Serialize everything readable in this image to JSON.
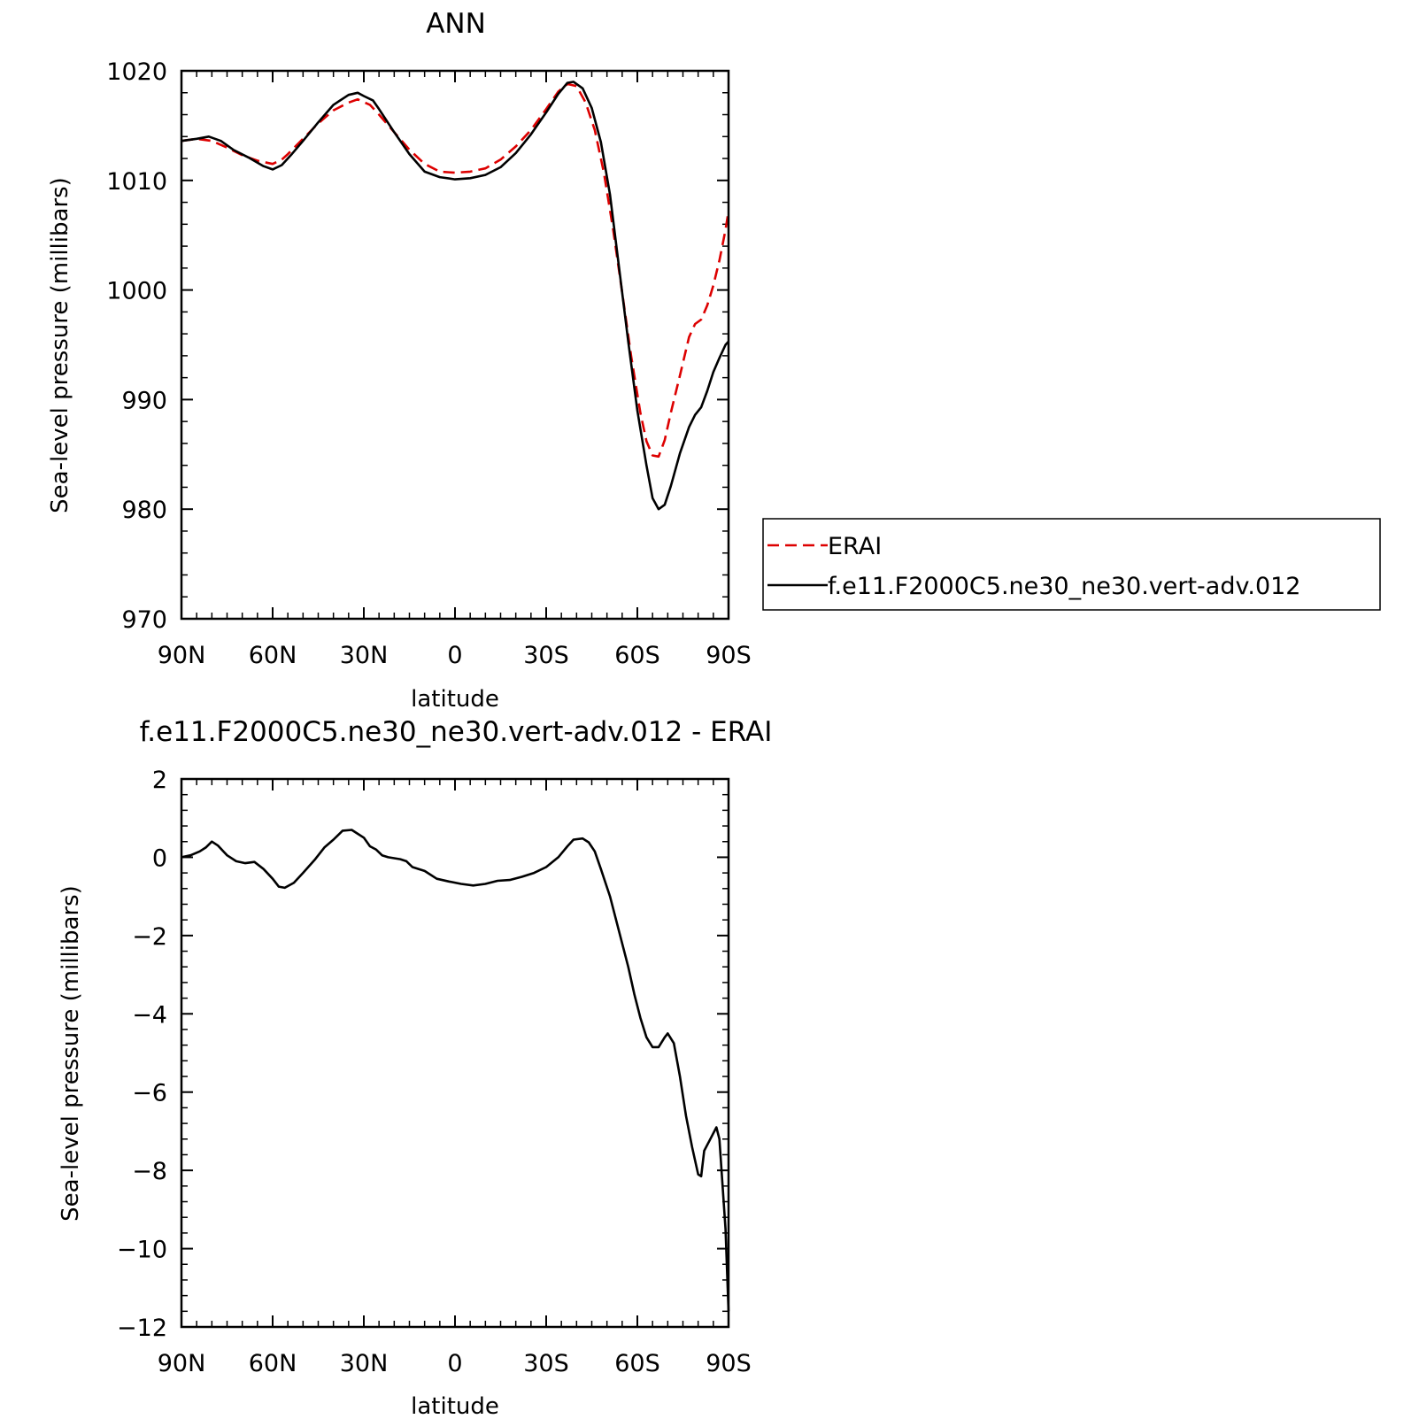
{
  "chart_data": [
    {
      "type": "line",
      "title": "ANN",
      "xlabel": "latitude",
      "ylabel": "Sea-level pressure (millibars)",
      "xlim": [
        90,
        -90
      ],
      "ylim": [
        970,
        1020
      ],
      "xticks": [
        90,
        60,
        30,
        0,
        -30,
        -60,
        -90
      ],
      "xtick_labels": [
        "90N",
        "60N",
        "30N",
        "0",
        "30S",
        "60S",
        "90S"
      ],
      "yticks": [
        970,
        980,
        990,
        1000,
        1010,
        1020
      ],
      "ytick_labels": [
        "970",
        "980",
        "990",
        "1000",
        "1010",
        "1020"
      ],
      "legend_placement": "right, outside plot",
      "series": [
        {
          "name": "ERAI",
          "color": "#dd0000",
          "dash": "dashed",
          "points": [
            [
              90,
              1013.6
            ],
            [
              85,
              1013.8
            ],
            [
              80,
              1013.6
            ],
            [
              75,
              1013.0
            ],
            [
              70,
              1012.3
            ],
            [
              65,
              1011.8
            ],
            [
              60,
              1011.5
            ],
            [
              57,
              1011.9
            ],
            [
              55,
              1012.4
            ],
            [
              50,
              1013.8
            ],
            [
              45,
              1015.2
            ],
            [
              40,
              1016.4
            ],
            [
              35,
              1017.1
            ],
            [
              32,
              1017.4
            ],
            [
              28,
              1016.9
            ],
            [
              25,
              1016.0
            ],
            [
              20,
              1014.4
            ],
            [
              15,
              1012.8
            ],
            [
              10,
              1011.5
            ],
            [
              5,
              1010.8
            ],
            [
              0,
              1010.7
            ],
            [
              -5,
              1010.8
            ],
            [
              -10,
              1011.1
            ],
            [
              -15,
              1011.9
            ],
            [
              -20,
              1013.1
            ],
            [
              -25,
              1014.6
            ],
            [
              -30,
              1016.5
            ],
            [
              -34,
              1018.1
            ],
            [
              -37,
              1018.8
            ],
            [
              -40,
              1018.6
            ],
            [
              -43,
              1017.1
            ],
            [
              -46,
              1014.6
            ],
            [
              -49,
              1010.7
            ],
            [
              -52,
              1005.6
            ],
            [
              -55,
              999.8
            ],
            [
              -58,
              993.9
            ],
            [
              -61,
              988.8
            ],
            [
              -63,
              986.2
            ],
            [
              -65,
              984.9
            ],
            [
              -67,
              984.8
            ],
            [
              -69,
              986.3
            ],
            [
              -71,
              988.8
            ],
            [
              -74,
              992.2
            ],
            [
              -77,
              995.7
            ],
            [
              -79,
              996.9
            ],
            [
              -81,
              997.3
            ],
            [
              -83,
              998.6
            ],
            [
              -85,
              1000.4
            ],
            [
              -87,
              1002.7
            ],
            [
              -89,
              1005.5
            ],
            [
              -90,
              1007.2
            ]
          ]
        },
        {
          "name": "f.e11.F2000C5.ne30_ne30.vert-adv.012",
          "color": "#000000",
          "dash": "solid",
          "points": [
            [
              90,
              1013.6
            ],
            [
              85,
              1013.8
            ],
            [
              81,
              1014.0
            ],
            [
              77,
              1013.6
            ],
            [
              73,
              1012.8
            ],
            [
              68,
              1012.1
            ],
            [
              63,
              1011.3
            ],
            [
              60,
              1011.0
            ],
            [
              57,
              1011.4
            ],
            [
              54,
              1012.3
            ],
            [
              50,
              1013.6
            ],
            [
              45,
              1015.3
            ],
            [
              40,
              1016.9
            ],
            [
              35,
              1017.8
            ],
            [
              32,
              1018.0
            ],
            [
              30,
              1017.7
            ],
            [
              27,
              1017.3
            ],
            [
              25,
              1016.5
            ],
            [
              20,
              1014.4
            ],
            [
              15,
              1012.4
            ],
            [
              10,
              1010.8
            ],
            [
              5,
              1010.3
            ],
            [
              0,
              1010.1
            ],
            [
              -5,
              1010.2
            ],
            [
              -10,
              1010.5
            ],
            [
              -15,
              1011.2
            ],
            [
              -20,
              1012.5
            ],
            [
              -25,
              1014.2
            ],
            [
              -30,
              1016.2
            ],
            [
              -34,
              1017.9
            ],
            [
              -37,
              1018.9
            ],
            [
              -39,
              1019.0
            ],
            [
              -42,
              1018.4
            ],
            [
              -45,
              1016.6
            ],
            [
              -48,
              1013.5
            ],
            [
              -51,
              1008.7
            ],
            [
              -54,
              1002.0
            ],
            [
              -57,
              995.3
            ],
            [
              -60,
              989.0
            ],
            [
              -63,
              984.0
            ],
            [
              -65,
              981.0
            ],
            [
              -67,
              980.0
            ],
            [
              -69,
              980.4
            ],
            [
              -71,
              982.1
            ],
            [
              -74,
              985.1
            ],
            [
              -77,
              987.5
            ],
            [
              -79,
              988.6
            ],
            [
              -81,
              989.3
            ],
            [
              -83,
              990.8
            ],
            [
              -85,
              992.5
            ],
            [
              -87,
              993.8
            ],
            [
              -89,
              995.0
            ],
            [
              -90,
              995.3
            ]
          ]
        }
      ]
    },
    {
      "type": "line",
      "title": "f.e11.F2000C5.ne30_ne30.vert-adv.012 - ERAI",
      "xlabel": "latitude",
      "ylabel": "Sea-level pressure (millibars)",
      "xlim": [
        90,
        -90
      ],
      "ylim": [
        -12,
        2
      ],
      "xticks": [
        90,
        60,
        30,
        0,
        -30,
        -60,
        -90
      ],
      "xtick_labels": [
        "90N",
        "60N",
        "30N",
        "0",
        "30S",
        "60S",
        "90S"
      ],
      "yticks": [
        -12,
        -10,
        -8,
        -6,
        -4,
        -2,
        0,
        2
      ],
      "ytick_labels": [
        "−12",
        "−10",
        "−8",
        "−6",
        "−4",
        "−2",
        "0",
        "2"
      ],
      "series": [
        {
          "name": "",
          "color": "#000000",
          "dash": "solid",
          "points": [
            [
              90,
              0.0
            ],
            [
              87,
              0.05
            ],
            [
              84,
              0.15
            ],
            [
              82,
              0.25
            ],
            [
              80,
              0.4
            ],
            [
              78,
              0.3
            ],
            [
              75,
              0.05
            ],
            [
              72,
              -0.1
            ],
            [
              69,
              -0.15
            ],
            [
              66,
              -0.12
            ],
            [
              63,
              -0.3
            ],
            [
              60,
              -0.55
            ],
            [
              58,
              -0.75
            ],
            [
              56,
              -0.78
            ],
            [
              53,
              -0.65
            ],
            [
              50,
              -0.4
            ],
            [
              46,
              -0.05
            ],
            [
              43,
              0.25
            ],
            [
              40,
              0.45
            ],
            [
              37,
              0.68
            ],
            [
              34,
              0.7
            ],
            [
              32,
              0.6
            ],
            [
              30,
              0.5
            ],
            [
              28,
              0.28
            ],
            [
              26,
              0.2
            ],
            [
              24,
              0.05
            ],
            [
              22,
              0.0
            ],
            [
              18,
              -0.05
            ],
            [
              16,
              -0.1
            ],
            [
              14,
              -0.25
            ],
            [
              10,
              -0.35
            ],
            [
              6,
              -0.55
            ],
            [
              2,
              -0.62
            ],
            [
              -2,
              -0.68
            ],
            [
              -6,
              -0.72
            ],
            [
              -10,
              -0.68
            ],
            [
              -14,
              -0.6
            ],
            [
              -18,
              -0.58
            ],
            [
              -22,
              -0.5
            ],
            [
              -26,
              -0.4
            ],
            [
              -30,
              -0.25
            ],
            [
              -34,
              0.0
            ],
            [
              -37,
              0.28
            ],
            [
              -39,
              0.45
            ],
            [
              -42,
              0.48
            ],
            [
              -44,
              0.38
            ],
            [
              -46,
              0.15
            ],
            [
              -48,
              -0.3
            ],
            [
              -51,
              -1.0
            ],
            [
              -54,
              -1.9
            ],
            [
              -57,
              -2.8
            ],
            [
              -59,
              -3.5
            ],
            [
              -61,
              -4.1
            ],
            [
              -63,
              -4.6
            ],
            [
              -65,
              -4.85
            ],
            [
              -67,
              -4.85
            ],
            [
              -69,
              -4.6
            ],
            [
              -70,
              -4.5
            ],
            [
              -72,
              -4.75
            ],
            [
              -74,
              -5.6
            ],
            [
              -76,
              -6.6
            ],
            [
              -78,
              -7.4
            ],
            [
              -80,
              -8.1
            ],
            [
              -81,
              -8.15
            ],
            [
              -82,
              -7.5
            ],
            [
              -84,
              -7.2
            ],
            [
              -86,
              -6.9
            ],
            [
              -87,
              -7.2
            ],
            [
              -89,
              -9.5
            ],
            [
              -90,
              -11.6
            ]
          ]
        }
      ]
    }
  ]
}
